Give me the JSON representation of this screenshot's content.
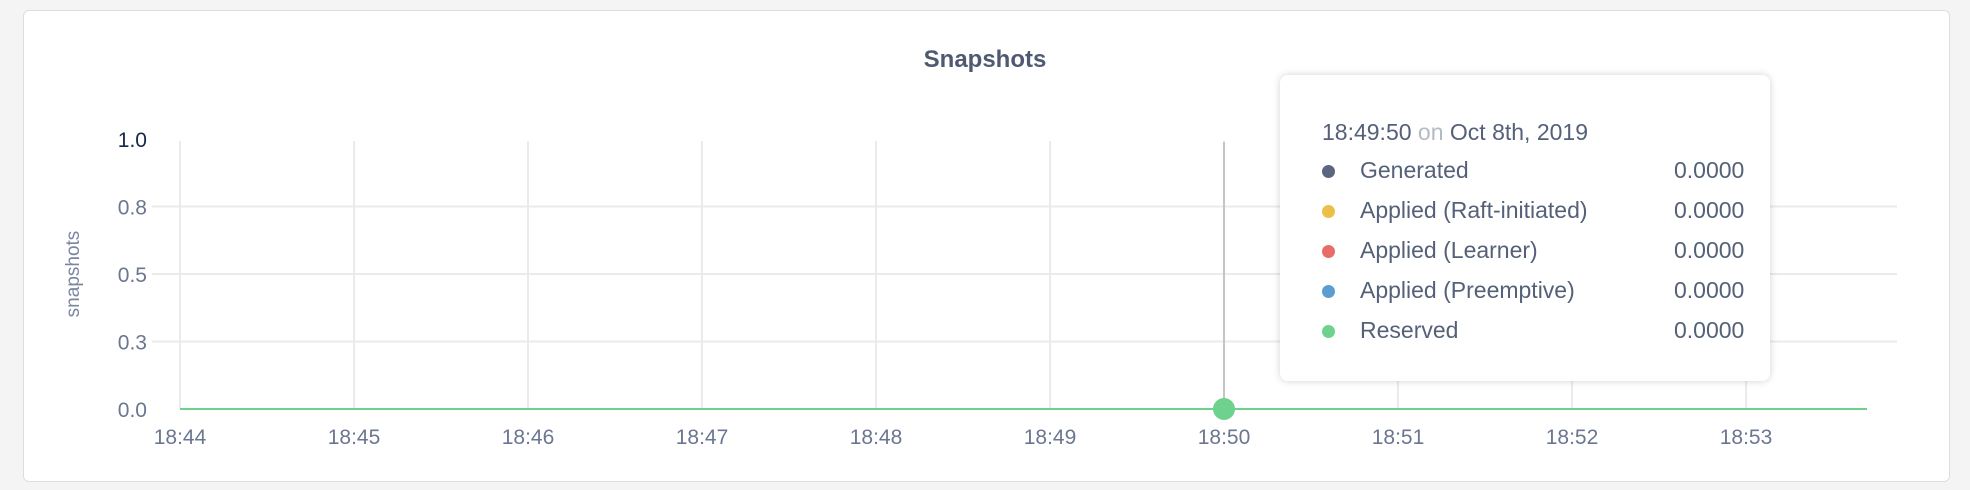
{
  "chart_data": {
    "type": "line",
    "title": "Snapshots",
    "ylabel": "snapshots",
    "xlabel": "",
    "ylim": [
      0,
      1
    ],
    "y_ticks": [
      0,
      0.25,
      0.5,
      0.75,
      1.0
    ],
    "y_tick_labels": [
      "0.0",
      "0.3",
      "0.5",
      "0.8",
      "1.0"
    ],
    "x_tick_labels": [
      "18:44",
      "18:45",
      "18:46",
      "18:47",
      "18:48",
      "18:49",
      "18:50",
      "18:51",
      "18:52",
      "18:53"
    ],
    "xlim": [
      "18:44",
      "18:53:42"
    ],
    "grid": true,
    "series": [
      {
        "name": "Generated",
        "color": "#5c6680",
        "values": [
          0,
          0,
          0,
          0,
          0,
          0,
          0,
          0,
          0,
          0
        ]
      },
      {
        "name": "Applied (Raft-initiated)",
        "color": "#ecbf48",
        "values": [
          0,
          0,
          0,
          0,
          0,
          0,
          0,
          0,
          0,
          0
        ]
      },
      {
        "name": "Applied (Learner)",
        "color": "#e76d69",
        "values": [
          0,
          0,
          0,
          0,
          0,
          0,
          0,
          0,
          0,
          0
        ]
      },
      {
        "name": "Applied (Preemptive)",
        "color": "#5b9dd0",
        "values": [
          0,
          0,
          0,
          0,
          0,
          0,
          0,
          0,
          0,
          0
        ]
      },
      {
        "name": "Reserved",
        "color": "#6fd18e",
        "values": [
          0,
          0,
          0,
          0,
          0,
          0,
          0,
          0,
          0,
          0
        ]
      }
    ],
    "hover": {
      "x": "18:50"
    }
  },
  "tooltip": {
    "time": "18:49:50",
    "on": "on",
    "date": "Oct 8th, 2019",
    "rows": [
      {
        "name": "Generated",
        "value": "0.0000"
      },
      {
        "name": "Applied (Raft-initiated)",
        "value": "0.0000"
      },
      {
        "name": "Applied (Learner)",
        "value": "0.0000"
      },
      {
        "name": "Applied (Preemptive)",
        "value": "0.0000"
      },
      {
        "name": "Reserved",
        "value": "0.0000"
      }
    ]
  }
}
